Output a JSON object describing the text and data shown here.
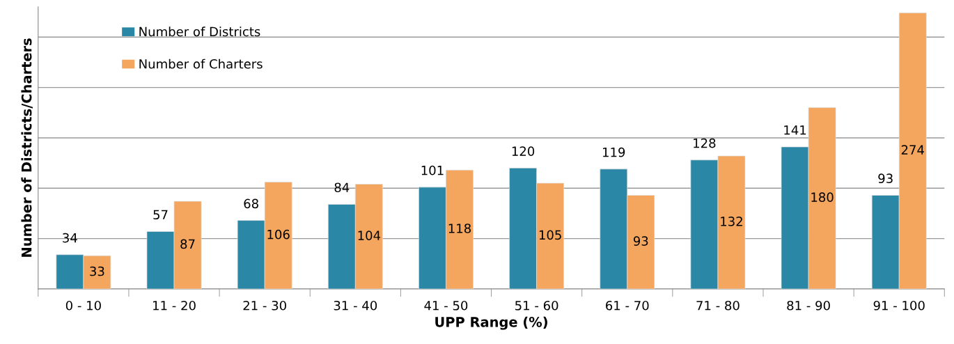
{
  "chart_data": {
    "type": "bar",
    "xlabel": "UPP Range (%)",
    "ylabel": "Number of Districts/Charters",
    "categories": [
      "0 - 10",
      "11 - 20",
      "21 - 30",
      "31 - 40",
      "41 - 50",
      "51 - 60",
      "61 - 70",
      "71 - 80",
      "81 - 90",
      "91 - 100"
    ],
    "series": [
      {
        "name": "Number of Districts",
        "color": "#2b87a6",
        "values": [
          34,
          57,
          68,
          84,
          101,
          120,
          119,
          128,
          141,
          93
        ]
      },
      {
        "name": "Number of Charters",
        "color": "#f4a65e",
        "values": [
          33,
          87,
          106,
          104,
          118,
          105,
          93,
          132,
          180,
          274
        ]
      }
    ],
    "ylim": [
      0,
      280
    ],
    "yticks": [
      {
        "value": 0,
        "label": null
      },
      {
        "value": 50,
        "label": null
      },
      {
        "value": 100,
        "label": null
      },
      {
        "value": 150,
        "label": null
      },
      {
        "value": 200,
        "label": null
      },
      {
        "value": 250,
        "label": null
      }
    ],
    "tick_labels": "x",
    "grid": "y",
    "legend": "top left",
    "data_labels": true
  }
}
